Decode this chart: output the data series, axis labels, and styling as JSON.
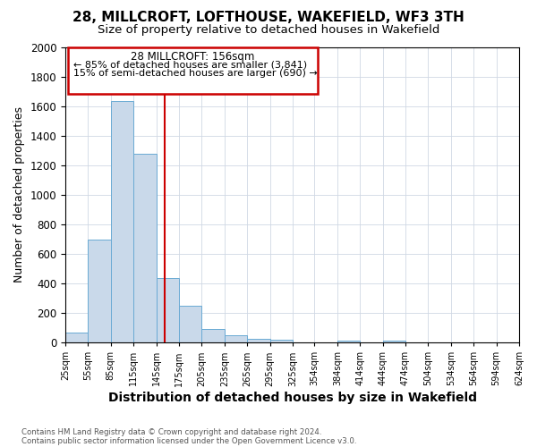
{
  "title": "28, MILLCROFT, LOFTHOUSE, WAKEFIELD, WF3 3TH",
  "subtitle": "Size of property relative to detached houses in Wakefield",
  "xlabel": "Distribution of detached houses by size in Wakefield",
  "ylabel": "Number of detached properties",
  "footnote1": "Contains HM Land Registry data © Crown copyright and database right 2024.",
  "footnote2": "Contains public sector information licensed under the Open Government Licence v3.0.",
  "annotation_line1": "28 MILLCROFT: 156sqm",
  "annotation_line2": "← 85% of detached houses are smaller (3,841)",
  "annotation_line3": "15% of semi-detached houses are larger (690) →",
  "property_size": 156,
  "bar_edges": [
    25,
    55,
    85,
    115,
    145,
    175,
    205,
    235,
    265,
    295,
    325,
    354,
    384,
    414,
    444,
    474,
    504,
    534,
    564,
    594,
    624
  ],
  "bar_heights": [
    65,
    695,
    1635,
    1280,
    435,
    250,
    90,
    50,
    25,
    22,
    0,
    0,
    15,
    0,
    12,
    0,
    0,
    0,
    0,
    0
  ],
  "bar_color": "#c9d9ea",
  "bar_edge_color": "#6aaad4",
  "vline_color": "#cc0000",
  "ylim": [
    0,
    2000
  ],
  "background_color": "#ffffff",
  "grid_color": "#d0d8e4",
  "title_fontsize": 11,
  "subtitle_fontsize": 9.5,
  "xlabel_fontsize": 10,
  "ylabel_fontsize": 9,
  "annotation_fontsize": 8.5
}
